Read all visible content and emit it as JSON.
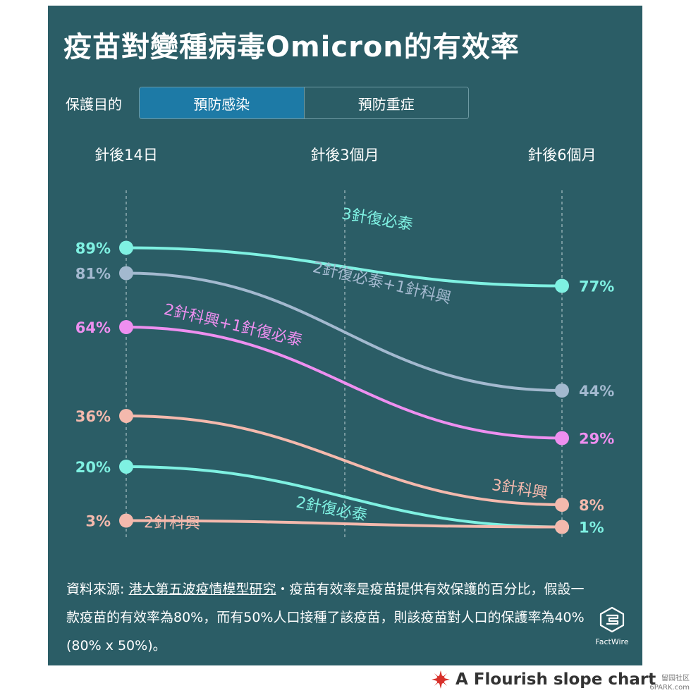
{
  "header": {
    "title": "疫苗對變種病毒Omicron的有效率"
  },
  "filter": {
    "label": "保護目的",
    "options": [
      "預防感染",
      "預防重症"
    ],
    "selected": "預防感染"
  },
  "footer": {
    "source_prefix": "資料來源: ",
    "source_link": "港大第五波疫情模型研究",
    "source_rest": "・疫苗有效率是疫苗提供有效保護的百分比，假設一款疫苗的有效率為80%，而有50%人口接種了該疫苗，則該疫苗對人口的保護率為40% (80% x 50%)。",
    "logo_text": "FactWire",
    "credit": "A Flourish slope chart",
    "watermark": "留园社区 6PARK.com"
  },
  "colors": {
    "panel": "#2b5d66",
    "toggle_active": "#1d7aa6",
    "teal": "#7ff1e2",
    "gray_blue": "#a3b9cf",
    "pink": "#ee8ff0",
    "salmon": "#f4b9ad"
  },
  "icons": {
    "logo": "factwire-logo-icon",
    "credit": "flourish-logo-icon"
  },
  "chart_data": {
    "type": "line",
    "subtype": "slope",
    "title": "疫苗對變種病毒Omicron的有效率",
    "categories": [
      "針後14日",
      "針後3個月",
      "針後6個月"
    ],
    "xlabel": "",
    "ylabel": "",
    "ylim": [
      0,
      100
    ],
    "grid": false,
    "value_suffix": "%",
    "series": [
      {
        "name": "3針復必泰",
        "start": 89,
        "end": 77,
        "color": "#7ff1e2"
      },
      {
        "name": "2針復必泰+1針科興",
        "start": 81,
        "end": 44,
        "color": "#a3b9cf"
      },
      {
        "name": "2針科興+1針復必泰",
        "start": 64,
        "end": 29,
        "color": "#ee8ff0"
      },
      {
        "name": "3針科興",
        "start": 36,
        "end": 8,
        "color": "#f4b9ad"
      },
      {
        "name": "2針復必泰",
        "start": 20,
        "end": 1,
        "color": "#7ff1e2"
      },
      {
        "name": "2針科興",
        "start": 3,
        "end": 1,
        "color": "#f4b9ad"
      }
    ]
  }
}
